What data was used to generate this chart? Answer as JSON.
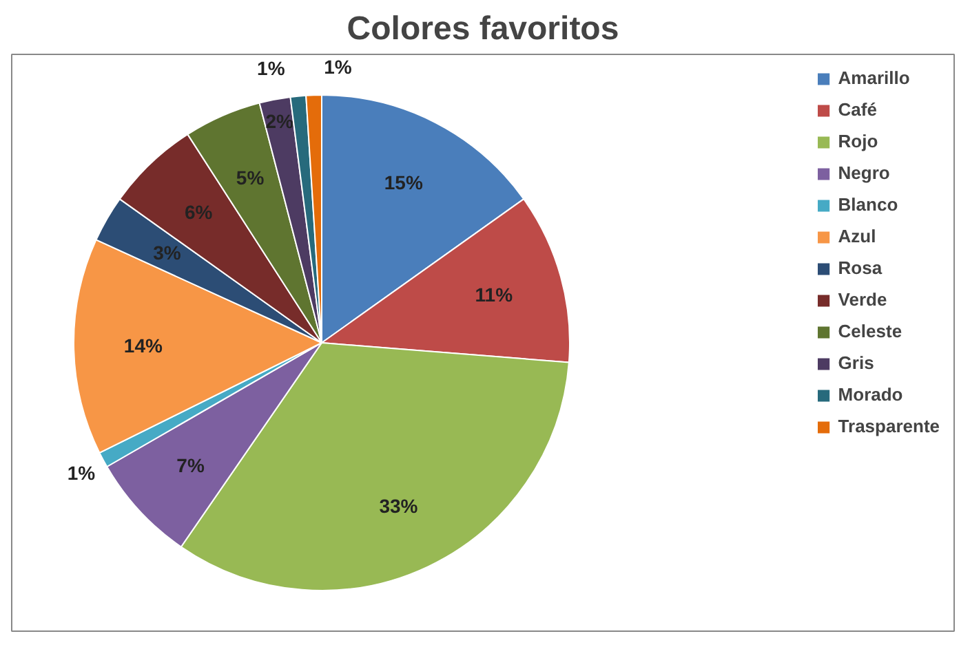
{
  "chart_data": {
    "type": "pie",
    "title": "Colores favoritos",
    "categories": [
      "Amarillo",
      "Café",
      "Rojo",
      "Negro",
      "Blanco",
      "Azul",
      "Rosa",
      "Verde",
      "Celeste",
      "Gris",
      "Morado",
      "Trasparente"
    ],
    "values": [
      15,
      11,
      33,
      7,
      1,
      14,
      3,
      6,
      5,
      2,
      1,
      1
    ],
    "colors": [
      "#4a7ebb",
      "#be4b48",
      "#98b954",
      "#7d60a0",
      "#46aac5",
      "#f79646",
      "#2c4d75",
      "#772c2a",
      "#5f7530",
      "#4d3b62",
      "#276a7c",
      "#e46c0a"
    ],
    "value_labels": [
      "15%",
      "11%",
      "33%",
      "7%",
      "1%",
      "14%",
      "3%",
      "6%",
      "5%",
      "2%",
      "1%",
      "1%"
    ],
    "legend": "right"
  }
}
